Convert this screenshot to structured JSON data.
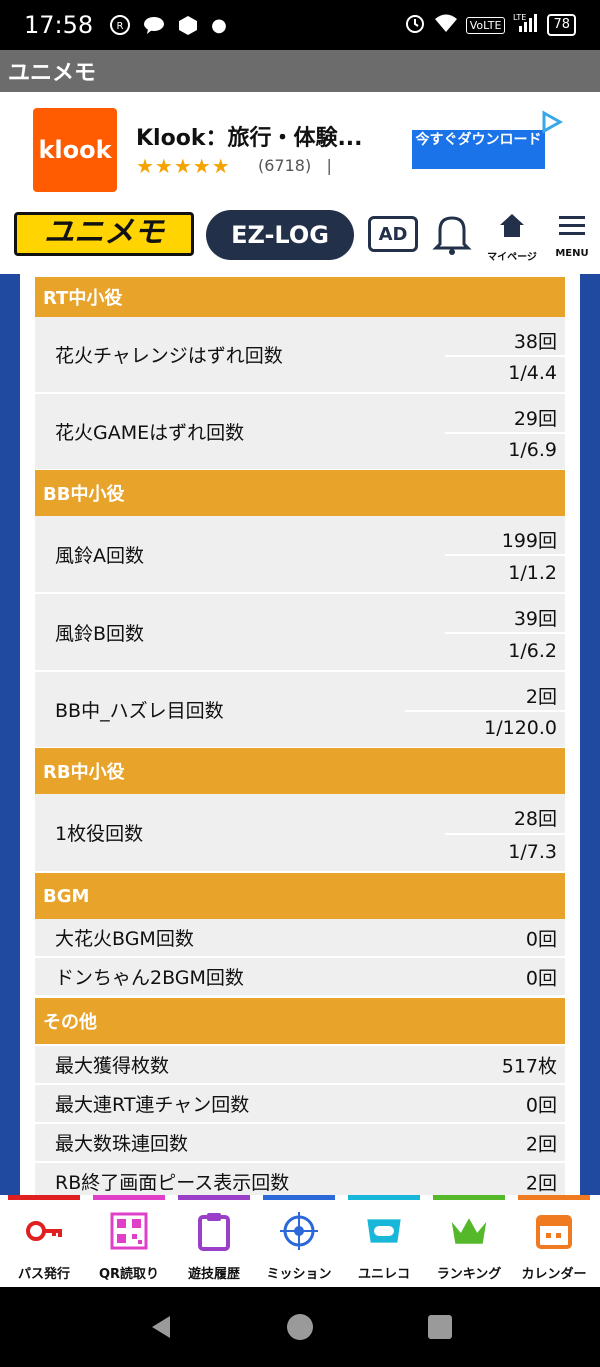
{
  "status": {
    "time": "17:58",
    "volte": "VoLTE",
    "lte": "LTE",
    "battery": "78"
  },
  "appbar": {
    "title": "ユニメモ"
  },
  "ad": {
    "logo": "klook",
    "title": "Klook：旅行・体験...",
    "stars": "★★★★★",
    "count": "(6718)",
    "divider": "|",
    "cta": "今すぐダウンロード"
  },
  "header": {
    "brand": "ユニメモ",
    "ezlog": "EZ-LOG",
    "ad_badge": "AD",
    "mypage": "マイページ",
    "menu": "MENU"
  },
  "sections": [
    {
      "title": "RT中小役",
      "rows": [
        {
          "label": "花火チャレンジはずれ回数",
          "count": "38回",
          "rate": "1/4.4"
        },
        {
          "label": "花火GAMEはずれ回数",
          "count": "29回",
          "rate": "1/6.9"
        }
      ]
    },
    {
      "title": "BB中小役",
      "rows": [
        {
          "label": "風鈴A回数",
          "count": "199回",
          "rate": "1/1.2"
        },
        {
          "label": "風鈴B回数",
          "count": "39回",
          "rate": "1/6.2"
        },
        {
          "label": "BB中_ハズレ目回数",
          "count": "2回",
          "rate": "1/120.0"
        }
      ]
    },
    {
      "title": "RB中小役",
      "rows": [
        {
          "label": "1枚役回数",
          "count": "28回",
          "rate": "1/7.3"
        }
      ]
    },
    {
      "title": "BGM",
      "rows": [
        {
          "label": "大花火BGM回数",
          "value": "0回"
        },
        {
          "label": "ドンちゃん2BGM回数",
          "value": "0回"
        }
      ]
    },
    {
      "title": "その他",
      "rows": [
        {
          "label": "最大獲得枚数",
          "value": "517枚"
        },
        {
          "label": "最大連RT連チャン回数",
          "value": "0回"
        },
        {
          "label": "最大数珠連回数",
          "value": "2回"
        },
        {
          "label": "RB終了画面ピース表示回数",
          "value": "2回"
        }
      ]
    }
  ],
  "tabs": [
    {
      "label": "パス発行",
      "icon": "key-icon",
      "color": "#e02020"
    },
    {
      "label": "QR読取り",
      "icon": "qr-icon",
      "color": "#e040c8"
    },
    {
      "label": "遊技履歴",
      "icon": "clipboard-icon",
      "color": "#9a3fc8"
    },
    {
      "label": "ミッション",
      "icon": "target-icon",
      "color": "#2b68d8"
    },
    {
      "label": "ユニレコ",
      "icon": "unireco-icon",
      "color": "#18b6d8"
    },
    {
      "label": "ランキング",
      "icon": "crown-icon",
      "color": "#55b82a"
    },
    {
      "label": "カレンダー",
      "icon": "calendar-icon",
      "color": "#ef7a20"
    }
  ],
  "colors": {
    "section": "#e8a32a",
    "navy": "#223149",
    "bg": "#1f4aa0"
  }
}
